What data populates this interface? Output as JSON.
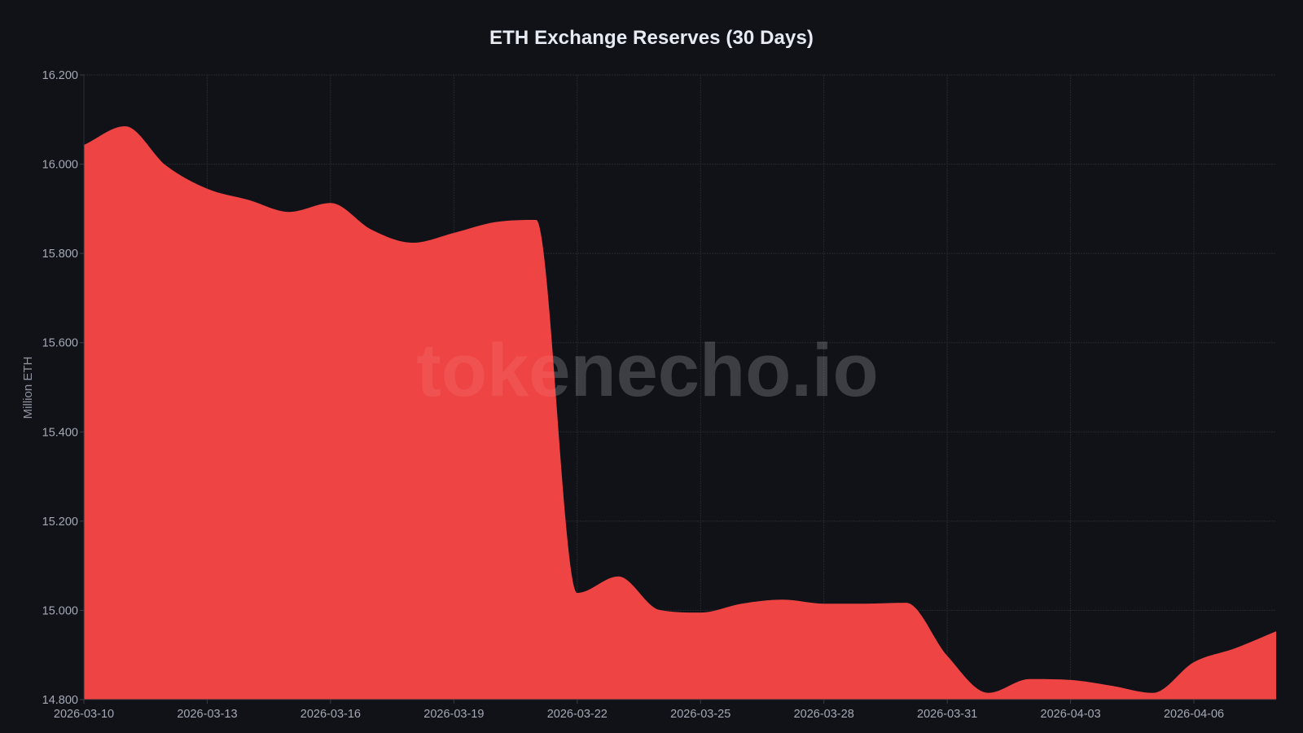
{
  "title": "ETH Exchange Reserves (30 Days)",
  "watermark": "tokenecho.io",
  "colors": {
    "background": "#111217",
    "area_fill": "#ef4444",
    "grid": "#262830",
    "text": "#a3a9b6",
    "title": "#e6ebf3"
  },
  "chart_data": {
    "type": "area",
    "title": "ETH Exchange Reserves (30 Days)",
    "xlabel": "",
    "ylabel": "Million ETH",
    "ylim": [
      14.8,
      16.2
    ],
    "grid": true,
    "legend": null,
    "y_ticks": [
      "16.200",
      "16.000",
      "15.800",
      "15.600",
      "15.400",
      "15.200",
      "15.000",
      "14.800"
    ],
    "x_ticks": [
      "2026-03-10",
      "2026-03-13",
      "2026-03-16",
      "2026-03-19",
      "2026-03-22",
      "2026-03-25",
      "2026-03-28",
      "2026-03-31",
      "2026-04-03",
      "2026-04-06"
    ],
    "x": [
      "2026-03-10",
      "2026-03-11",
      "2026-03-12",
      "2026-03-13",
      "2026-03-14",
      "2026-03-15",
      "2026-03-16",
      "2026-03-17",
      "2026-03-18",
      "2026-03-19",
      "2026-03-20",
      "2026-03-21",
      "2026-03-22",
      "2026-03-23",
      "2026-03-24",
      "2026-03-25",
      "2026-03-26",
      "2026-03-27",
      "2026-03-28",
      "2026-03-29",
      "2026-03-30",
      "2026-03-31",
      "2026-04-01",
      "2026-04-02",
      "2026-04-03",
      "2026-04-04",
      "2026-04-05",
      "2026-04-06",
      "2026-04-07",
      "2026-04-08"
    ],
    "series": [
      {
        "name": "ETH Exchange Reserves",
        "color": "#ef4444",
        "values": [
          16.043,
          16.085,
          15.997,
          15.945,
          15.92,
          15.893,
          15.913,
          15.853,
          15.824,
          15.846,
          15.87,
          15.875,
          15.039,
          15.076,
          15.001,
          14.995,
          15.015,
          15.024,
          15.015,
          15.015,
          15.017,
          14.898,
          14.815,
          14.846,
          14.844,
          14.831,
          14.815,
          14.884,
          14.915,
          14.953
        ]
      }
    ]
  }
}
